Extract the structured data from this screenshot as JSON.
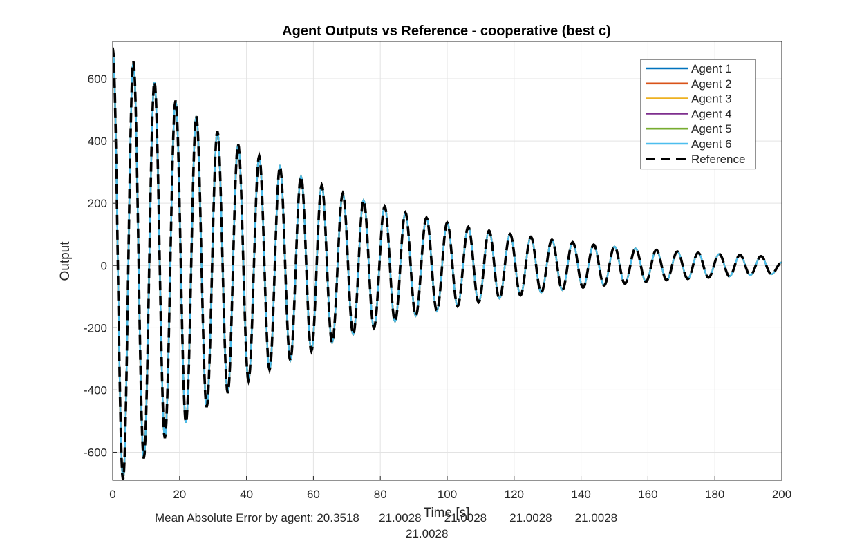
{
  "chart_data": {
    "type": "line",
    "title": "Agent Outputs vs Reference - cooperative (best c)",
    "xlabel": "Time [s]",
    "ylabel": "Output",
    "xlim": [
      0,
      200
    ],
    "ylim": [
      -690,
      720
    ],
    "x_ticks": [
      0,
      20,
      40,
      60,
      80,
      100,
      120,
      140,
      160,
      180,
      200
    ],
    "y_ticks": [
      -600,
      -400,
      -200,
      0,
      200,
      400,
      600
    ],
    "grid": true,
    "legend_position": "top-right",
    "colors": {
      "Agent 1": "#0072BD",
      "Agent 2": "#D95319",
      "Agent 3": "#EDB120",
      "Agent 4": "#7E2F8E",
      "Agent 5": "#77AC30",
      "Agent 6": "#4DBEEE",
      "Reference": "#000000"
    },
    "series": [
      {
        "name": "Agent 1",
        "x": [
          0,
          6.2,
          9.3,
          12.5,
          15.6,
          18.8,
          21.9,
          25.0,
          28.1,
          31.3,
          34.4,
          37.5,
          40.6,
          43.8,
          46.9,
          50.0,
          56.3,
          62.5,
          68.8,
          75.0,
          81.3,
          87.5,
          93.8,
          100.0,
          106.3,
          112.5,
          118.8,
          125.0,
          131.3,
          137.5,
          143.8,
          150.0,
          156.3,
          162.5,
          168.8,
          175.0,
          181.3,
          187.5,
          193.8,
          200.0
        ],
        "y": [
          700,
          655,
          -610,
          585,
          -555,
          530,
          -505,
          478,
          -455,
          432,
          -410,
          390,
          -370,
          352,
          -335,
          318,
          287,
          258,
          232,
          210,
          190,
          170,
          154,
          138,
          124,
          112,
          101,
          92,
          83,
          75,
          67,
          61,
          55,
          50,
          45,
          41,
          37,
          34,
          30,
          10
        ]
      },
      {
        "name": "Agent 2",
        "x": [
          0,
          6.2,
          12.5,
          18.8,
          25.0,
          31.3,
          37.5,
          43.8,
          50.0,
          56.3,
          62.5,
          68.8,
          75.0,
          81.3,
          87.5,
          93.8,
          100.0,
          106.3,
          112.5,
          118.8,
          125.0,
          131.3,
          137.5,
          143.8,
          150.0,
          156.3,
          162.5,
          168.8,
          175.0,
          181.3,
          187.5,
          193.8,
          200.0
        ],
        "y": [
          700,
          655,
          585,
          530,
          478,
          432,
          390,
          352,
          318,
          287,
          258,
          232,
          210,
          190,
          170,
          154,
          138,
          124,
          112,
          101,
          92,
          83,
          75,
          67,
          61,
          55,
          50,
          45,
          41,
          37,
          34,
          30,
          10
        ]
      },
      {
        "name": "Agent 3",
        "x": [
          0,
          6.2,
          12.5,
          18.8,
          25.0,
          31.3,
          37.5,
          43.8,
          50.0,
          56.3,
          62.5,
          68.8,
          75.0,
          81.3,
          87.5,
          93.8,
          100.0,
          106.3,
          112.5,
          118.8,
          125.0,
          131.3,
          137.5,
          143.8,
          150.0,
          156.3,
          162.5,
          168.8,
          175.0,
          181.3,
          187.5,
          193.8,
          200.0
        ],
        "y": [
          700,
          655,
          585,
          530,
          478,
          432,
          390,
          352,
          318,
          287,
          258,
          232,
          210,
          190,
          170,
          154,
          138,
          124,
          112,
          101,
          92,
          83,
          75,
          67,
          61,
          55,
          50,
          45,
          41,
          37,
          34,
          30,
          10
        ]
      },
      {
        "name": "Agent 4",
        "x": [
          0,
          6.2,
          12.5,
          18.8,
          25.0,
          31.3,
          37.5,
          43.8,
          50.0,
          56.3,
          62.5,
          68.8,
          75.0,
          81.3,
          87.5,
          93.8,
          100.0,
          106.3,
          112.5,
          118.8,
          125.0,
          131.3,
          137.5,
          143.8,
          150.0,
          156.3,
          162.5,
          168.8,
          175.0,
          181.3,
          187.5,
          193.8,
          200.0
        ],
        "y": [
          700,
          655,
          585,
          530,
          478,
          432,
          390,
          352,
          318,
          287,
          258,
          232,
          210,
          190,
          170,
          154,
          138,
          124,
          112,
          101,
          92,
          83,
          75,
          67,
          61,
          55,
          50,
          45,
          41,
          37,
          34,
          30,
          10
        ]
      },
      {
        "name": "Agent 5",
        "x": [
          0,
          6.2,
          12.5,
          18.8,
          25.0,
          31.3,
          37.5,
          43.8,
          50.0,
          56.3,
          62.5,
          68.8,
          75.0,
          81.3,
          87.5,
          93.8,
          100.0,
          106.3,
          112.5,
          118.8,
          125.0,
          131.3,
          137.5,
          143.8,
          150.0,
          156.3,
          162.5,
          168.8,
          175.0,
          181.3,
          187.5,
          193.8,
          200.0
        ],
        "y": [
          700,
          655,
          585,
          530,
          478,
          432,
          390,
          352,
          318,
          287,
          258,
          232,
          210,
          190,
          170,
          154,
          138,
          124,
          112,
          101,
          92,
          83,
          75,
          67,
          61,
          55,
          50,
          45,
          41,
          37,
          34,
          30,
          10
        ]
      },
      {
        "name": "Agent 6",
        "x": [
          0,
          6.2,
          12.5,
          18.8,
          25.0,
          31.3,
          37.5,
          43.8,
          50.0,
          56.3,
          62.5,
          68.8,
          75.0,
          81.3,
          87.5,
          93.8,
          100.0,
          106.3,
          112.5,
          118.8,
          125.0,
          131.3,
          137.5,
          143.8,
          150.0,
          156.3,
          162.5,
          168.8,
          175.0,
          181.3,
          187.5,
          193.8,
          200.0
        ],
        "y": [
          700,
          655,
          585,
          530,
          478,
          432,
          390,
          352,
          318,
          287,
          258,
          232,
          210,
          190,
          170,
          154,
          138,
          124,
          112,
          101,
          92,
          83,
          75,
          67,
          61,
          55,
          50,
          45,
          41,
          37,
          34,
          30,
          10
        ]
      },
      {
        "name": "Reference",
        "x": [
          0,
          3.1,
          6.2,
          9.3,
          12.5,
          15.6,
          18.8,
          21.9,
          25.0,
          28.1,
          31.3,
          34.4,
          37.5,
          40.6,
          43.8,
          46.9,
          50.0,
          53.1,
          56.3,
          59.4,
          62.5,
          65.6,
          68.8,
          71.9,
          75.0,
          78.1,
          81.3,
          84.4,
          87.5,
          90.6,
          93.8,
          96.9,
          100.0,
          103.1,
          106.3,
          109.4,
          112.5,
          115.6,
          118.8,
          121.9,
          125.0,
          128.1,
          131.3,
          134.4,
          137.5,
          140.6,
          143.8,
          146.9,
          150.0,
          153.1,
          156.3,
          159.4,
          162.5,
          165.6,
          168.8,
          171.9,
          175.0,
          178.1,
          181.3,
          184.4,
          187.5,
          190.6,
          193.8,
          196.9,
          200.0
        ],
        "y": [
          700,
          -690,
          655,
          -620,
          590,
          -555,
          530,
          -505,
          480,
          -455,
          432,
          -410,
          390,
          -370,
          352,
          -335,
          318,
          -305,
          287,
          -275,
          258,
          -248,
          232,
          -222,
          210,
          -200,
          190,
          -180,
          170,
          -162,
          154,
          -146,
          138,
          -131,
          124,
          -118,
          112,
          -106,
          101,
          -96,
          92,
          -87,
          83,
          -79,
          75,
          -71,
          67,
          -64,
          61,
          -58,
          55,
          -52,
          50,
          -47,
          45,
          -43,
          41,
          -39,
          37,
          -35,
          34,
          -31,
          30,
          -28,
          10
        ]
      }
    ]
  },
  "footer": {
    "mae_line1": "Mean Absolute Error by agent: 20.3518      21.0028       21.0028       21.0028       21.0028",
    "mae_line2": "21.0028"
  }
}
